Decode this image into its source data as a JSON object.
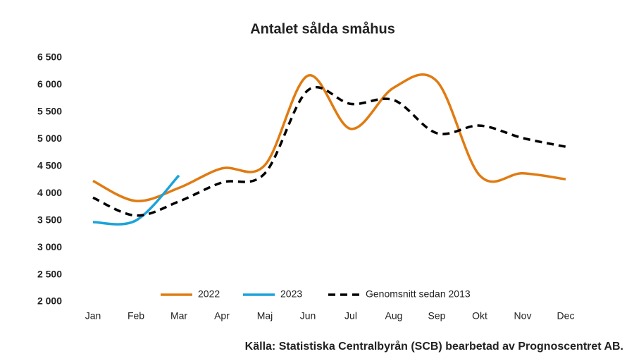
{
  "chart_data": {
    "type": "line",
    "title": "Antalet sålda småhus",
    "source": "Källa: Statistiska Centralbyrån (SCB) bearbetad av Prognoscentret AB.",
    "categories": [
      "Jan",
      "Feb",
      "Mar",
      "Apr",
      "Maj",
      "Jun",
      "Jul",
      "Aug",
      "Sep",
      "Okt",
      "Nov",
      "Dec"
    ],
    "series": [
      {
        "name": "2022",
        "color": "#e07b12",
        "values": [
          4230,
          3860,
          4100,
          4460,
          4520,
          6170,
          5190,
          5950,
          6070,
          4330,
          4370,
          4260
        ]
      },
      {
        "name": "2023",
        "color": "#1ba3d9",
        "values": [
          3470,
          3500,
          4330,
          null,
          null,
          null,
          null,
          null,
          null,
          null,
          null,
          null
        ]
      },
      {
        "name": "Genomsnitt sedan 2013",
        "color": "#000000",
        "dashed": true,
        "values": [
          3920,
          3590,
          3850,
          4200,
          4370,
          5900,
          5650,
          5720,
          5110,
          5250,
          5020,
          4860
        ]
      }
    ],
    "ylim": [
      2000,
      6500
    ],
    "yticks": [
      {
        "value": 2000,
        "label": "2 000"
      },
      {
        "value": 2500,
        "label": "2 500"
      },
      {
        "value": 3000,
        "label": "3 000"
      },
      {
        "value": 3500,
        "label": "3 500"
      },
      {
        "value": 4000,
        "label": "4 000"
      },
      {
        "value": 4500,
        "label": "4 500"
      },
      {
        "value": 5000,
        "label": "5 000"
      },
      {
        "value": 5500,
        "label": "5 500"
      },
      {
        "value": 6000,
        "label": "6 000"
      },
      {
        "value": 6500,
        "label": "6 500"
      }
    ],
    "grid": false,
    "legend": "bottom"
  }
}
